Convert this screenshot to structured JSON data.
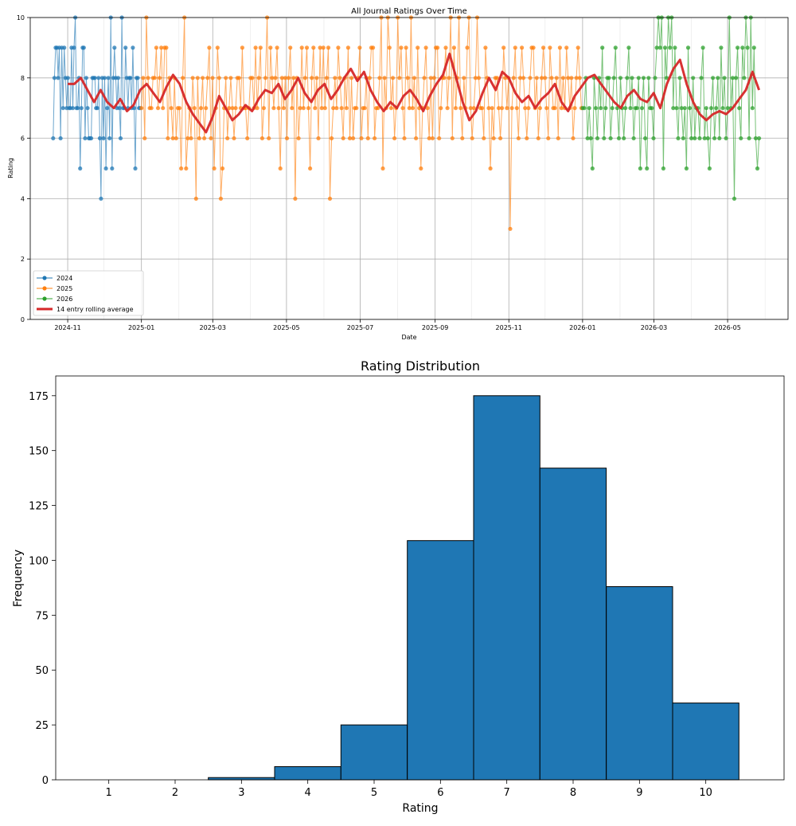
{
  "chart_data": [
    {
      "type": "line",
      "title": "All Journal Ratings Over Time",
      "xlabel": "Date",
      "ylabel": "Rating",
      "ylim": [
        0,
        10
      ],
      "xlim": [
        "2024-10-01",
        "2026-06-20"
      ],
      "yticks": [
        "0",
        "2",
        "4",
        "6",
        "8",
        "10"
      ],
      "xticks": [
        {
          "label": "2024-11",
          "date": "2024-11-01"
        },
        {
          "label": "2025-01",
          "date": "2025-01-01"
        },
        {
          "label": "2025-03",
          "date": "2025-03-01"
        },
        {
          "label": "2025-05",
          "date": "2025-05-01"
        },
        {
          "label": "2025-07",
          "date": "2025-07-01"
        },
        {
          "label": "2025-09",
          "date": "2025-09-01"
        },
        {
          "label": "2025-11",
          "date": "2025-11-01"
        },
        {
          "label": "2026-01",
          "date": "2026-01-01"
        },
        {
          "label": "2026-03",
          "date": "2026-03-01"
        },
        {
          "label": "2026-05",
          "date": "2026-05-01"
        }
      ],
      "grid": true,
      "legend_position": "lower-left",
      "series": [
        {
          "name": "2024",
          "color": "#1f77b4",
          "start": "2024-10-20",
          "end": "2024-12-31",
          "values": [
            6,
            8,
            9,
            9,
            8,
            9,
            6,
            9,
            7,
            9,
            8,
            7,
            8,
            7,
            7,
            9,
            7,
            9,
            10,
            7,
            7,
            8,
            5,
            7,
            9,
            9,
            6,
            8,
            7,
            6,
            6,
            6,
            8,
            8,
            8,
            7,
            7,
            8,
            6,
            4,
            8,
            6,
            8,
            5,
            7,
            8,
            6,
            10,
            5,
            8,
            9,
            8,
            7,
            8,
            7,
            6,
            10,
            7,
            7,
            9,
            8,
            7,
            8,
            8,
            7,
            9,
            7,
            5,
            8,
            8,
            7,
            7
          ]
        },
        {
          "name": "2025",
          "color": "#ff7f0e",
          "start": "2025-01-01",
          "end": "2025-12-31",
          "values": [
            7,
            8,
            6,
            10,
            8,
            7,
            7,
            8,
            8,
            9,
            7,
            8,
            9,
            7,
            9,
            9,
            6,
            8,
            7,
            6,
            8,
            6,
            7,
            7,
            5,
            8,
            10,
            5,
            6,
            7,
            6,
            8,
            7,
            4,
            8,
            6,
            7,
            8,
            6,
            7,
            8,
            9,
            6,
            8,
            5,
            7,
            9,
            8,
            4,
            5,
            7,
            8,
            6,
            7,
            8,
            7,
            6,
            7,
            8,
            8,
            7,
            9,
            7,
            7,
            6,
            7,
            8,
            8,
            7,
            9,
            7,
            8,
            9,
            6,
            7,
            8,
            10,
            6,
            9,
            8,
            7,
            8,
            9,
            7,
            5,
            8,
            7,
            8,
            6,
            8,
            9,
            7,
            8,
            4,
            8,
            6,
            7,
            9,
            7,
            8,
            9,
            7,
            5,
            8,
            9,
            7,
            8,
            6,
            9,
            7,
            9,
            7,
            8,
            9,
            4,
            6,
            7,
            8,
            7,
            9,
            8,
            7,
            6,
            8,
            7,
            9,
            6,
            8,
            6,
            7,
            7,
            8,
            9,
            6,
            7,
            7,
            8,
            6,
            8,
            9,
            9,
            6,
            7,
            7,
            8,
            10,
            5,
            8,
            7,
            10,
            9,
            7,
            8,
            6,
            7,
            10,
            8,
            9,
            7,
            6,
            9,
            8,
            7,
            10,
            7,
            8,
            6,
            9,
            7,
            5,
            7,
            8,
            9,
            7,
            6,
            8,
            6,
            8,
            9,
            9,
            6,
            7,
            8,
            8,
            9,
            7,
            8,
            10,
            6,
            9,
            7,
            8,
            10,
            7,
            6,
            8,
            7,
            9,
            10,
            7,
            6,
            7,
            8,
            10,
            8,
            7,
            7,
            6,
            9,
            8,
            7,
            5,
            7,
            6,
            8,
            8,
            7,
            6,
            7,
            9,
            8,
            7,
            8,
            3,
            7,
            8,
            9,
            7,
            6,
            8,
            9,
            8,
            7,
            6,
            7,
            8,
            9,
            9,
            7,
            8,
            6,
            7,
            8,
            9,
            8,
            7,
            6,
            9,
            8,
            7,
            7,
            8,
            6,
            9,
            7,
            8,
            7,
            9,
            8,
            7,
            8,
            6,
            7,
            8,
            9,
            8,
            7
          ]
        },
        {
          "name": "2026",
          "color": "#2ca02c",
          "start": "2026-01-01",
          "end": "2026-05-27",
          "values": [
            7,
            7,
            8,
            6,
            7,
            6,
            5,
            8,
            7,
            6,
            8,
            7,
            9,
            6,
            7,
            8,
            8,
            6,
            7,
            8,
            9,
            7,
            6,
            8,
            7,
            6,
            7,
            8,
            9,
            7,
            8,
            6,
            7,
            7,
            8,
            5,
            7,
            8,
            6,
            5,
            8,
            7,
            7,
            6,
            8,
            9,
            10,
            9,
            10,
            5,
            9,
            8,
            10,
            9,
            10,
            7,
            9,
            7,
            6,
            8,
            7,
            6,
            7,
            5,
            9,
            7,
            6,
            8,
            6,
            7,
            7,
            6,
            8,
            9,
            6,
            7,
            6,
            5,
            7,
            8,
            6,
            7,
            8,
            6,
            9,
            7,
            8,
            6,
            7,
            10,
            7,
            8,
            4,
            8,
            9,
            7,
            6,
            9,
            8,
            10,
            9,
            6,
            10,
            7,
            9,
            6,
            5,
            6
          ]
        },
        {
          "name": "14 entry rolling average",
          "color": "#d62728",
          "start": "2024-11-01",
          "end": "2026-05-27",
          "values": [
            7.8,
            7.8,
            8.0,
            7.6,
            7.2,
            7.6,
            7.2,
            7.0,
            7.3,
            6.9,
            7.1,
            7.6,
            7.8,
            7.5,
            7.2,
            7.7,
            8.1,
            7.8,
            7.2,
            6.8,
            6.5,
            6.2,
            6.7,
            7.4,
            7.0,
            6.6,
            6.8,
            7.1,
            6.9,
            7.3,
            7.6,
            7.5,
            7.8,
            7.3,
            7.6,
            8.0,
            7.5,
            7.2,
            7.6,
            7.8,
            7.3,
            7.6,
            8.0,
            8.3,
            7.9,
            8.2,
            7.6,
            7.2,
            6.9,
            7.2,
            7.0,
            7.4,
            7.6,
            7.3,
            6.9,
            7.4,
            7.8,
            8.1,
            8.8,
            8.0,
            7.2,
            6.6,
            6.9,
            7.5,
            8.0,
            7.6,
            8.2,
            8.0,
            7.5,
            7.2,
            7.4,
            7.0,
            7.3,
            7.5,
            7.8,
            7.2,
            6.9,
            7.4,
            7.7,
            8.0,
            8.1,
            7.8,
            7.5,
            7.2,
            7.0,
            7.4,
            7.6,
            7.3,
            7.2,
            7.5,
            7.0,
            7.8,
            8.3,
            8.6,
            7.8,
            7.2,
            6.8,
            6.6,
            6.8,
            6.9,
            6.8,
            7.0,
            7.3,
            7.6,
            8.2,
            7.6
          ]
        }
      ]
    },
    {
      "type": "bar",
      "title": "Rating Distribution",
      "xlabel": "Rating",
      "ylabel": "Frequency",
      "categories": [
        "1",
        "2",
        "3",
        "4",
        "5",
        "6",
        "7",
        "8",
        "9",
        "10"
      ],
      "values": [
        0,
        0,
        1,
        6,
        25,
        109,
        175,
        142,
        88,
        35
      ],
      "ylim": [
        0,
        184
      ],
      "yticks": [
        "0",
        "25",
        "50",
        "75",
        "100",
        "125",
        "150",
        "175"
      ],
      "color": "#1f77b4",
      "edge_color": "#000000",
      "grid": false
    }
  ]
}
